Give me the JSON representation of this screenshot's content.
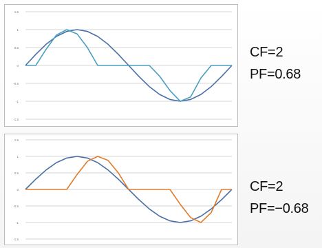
{
  "chart_data": [
    {
      "type": "line",
      "title": "",
      "xlabel": "",
      "ylabel": "",
      "ylim": [
        -1.5,
        1.5
      ],
      "yticks": [
        1.5,
        1,
        0.5,
        0,
        -0.5,
        -1,
        -1.5
      ],
      "ytick_labels": [
        "1.5",
        "1",
        "0.5",
        "0",
        "-0.5",
        "-1",
        "-1.5"
      ],
      "grid": true,
      "legend": "none",
      "x": [
        0,
        0.05,
        0.1,
        0.15,
        0.2,
        0.25,
        0.3,
        0.35,
        0.4,
        0.45,
        0.5,
        0.55,
        0.6,
        0.65,
        0.7,
        0.75,
        0.8,
        0.85,
        0.9,
        0.95,
        1.0
      ],
      "series": [
        {
          "color": "#4a6fa5",
          "values": [
            0,
            0.31,
            0.59,
            0.81,
            0.95,
            1.0,
            0.95,
            0.81,
            0.59,
            0.31,
            0,
            -0.31,
            -0.59,
            -0.81,
            -0.95,
            -1.0,
            -0.95,
            -0.81,
            -0.59,
            -0.31,
            0
          ]
        },
        {
          "color": "#4a9ec0",
          "values": [
            0,
            0,
            0.45,
            0.85,
            1.0,
            0.88,
            0.5,
            0,
            0,
            0,
            0,
            0,
            0,
            -0.3,
            -0.7,
            -1.0,
            -0.88,
            -0.35,
            0,
            0,
            0
          ]
        }
      ],
      "caption": [
        "CF=2",
        "PF=0.68"
      ]
    },
    {
      "type": "line",
      "title": "",
      "xlabel": "",
      "ylabel": "",
      "ylim": [
        -1.5,
        1.5
      ],
      "yticks": [
        1.5,
        1,
        0.5,
        0,
        -0.5,
        -1,
        -1.5
      ],
      "ytick_labels": [
        "1.5",
        "1",
        "0.5",
        "0",
        "-0.5",
        "-1",
        "-1.5"
      ],
      "grid": true,
      "legend": "none",
      "x": [
        0,
        0.05,
        0.1,
        0.15,
        0.2,
        0.25,
        0.3,
        0.35,
        0.4,
        0.45,
        0.5,
        0.55,
        0.6,
        0.65,
        0.7,
        0.75,
        0.8,
        0.85,
        0.9,
        0.95,
        1.0
      ],
      "series": [
        {
          "color": "#4a6fa5",
          "values": [
            0,
            0.31,
            0.59,
            0.81,
            0.95,
            1.0,
            0.95,
            0.81,
            0.59,
            0.31,
            0,
            -0.31,
            -0.59,
            -0.81,
            -0.95,
            -1.0,
            -0.95,
            -0.81,
            -0.59,
            -0.31,
            0
          ]
        },
        {
          "color": "#e07b2a",
          "values": [
            0,
            0,
            0,
            0,
            0,
            0.45,
            0.85,
            1.0,
            0.88,
            0.5,
            0,
            0,
            0,
            0,
            0,
            -0.45,
            -0.85,
            -1.0,
            -0.7,
            0,
            0
          ]
        }
      ],
      "caption": [
        "CF=2",
        "PF=−0.68"
      ]
    }
  ]
}
